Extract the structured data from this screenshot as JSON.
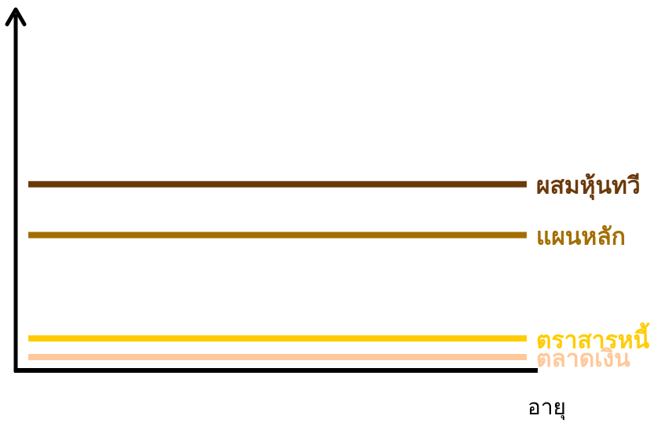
{
  "chart_data": {
    "type": "line",
    "title": "",
    "xlabel": "อายุ",
    "ylabel": "",
    "grid": false,
    "legend": "inline-right",
    "ylim": [
      0,
      10
    ],
    "series": [
      {
        "name": "ผสมหุ้นทวี",
        "values": [
          5.4,
          5.4
        ],
        "color": "#6B3A0A"
      },
      {
        "name": "แผนหลัก",
        "values": [
          3.9,
          3.9
        ],
        "color": "#A36E00"
      },
      {
        "name": "ตราสารหนี้",
        "values": [
          0.85,
          0.85
        ],
        "color": "#FFCC00"
      },
      {
        "name": "ตลาดเงิน",
        "values": [
          0.3,
          0.3
        ],
        "color": "#FFC89A"
      }
    ]
  }
}
